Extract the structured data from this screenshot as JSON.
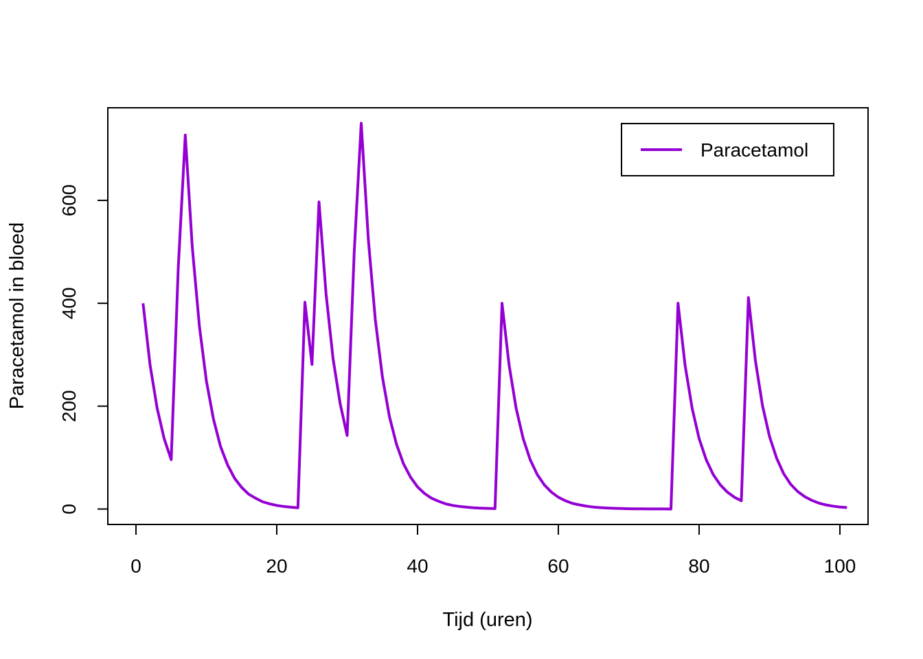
{
  "chart_data": {
    "type": "line",
    "title": "",
    "xlabel": "Tijd (uren)",
    "ylabel": "Paracetamol in bloed",
    "xlim": [
      -4,
      104
    ],
    "ylim": [
      -30,
      780
    ],
    "x_ticks": [
      0,
      20,
      40,
      60,
      80,
      100
    ],
    "x_tick_labels": [
      "0",
      "20",
      "40",
      "60",
      "80",
      "100"
    ],
    "y_ticks": [
      0,
      200,
      400,
      600
    ],
    "y_tick_labels": [
      "0",
      "200",
      "400",
      "600"
    ],
    "grid": false,
    "legend": {
      "position": "top-right",
      "entries": [
        "Paracetamol"
      ]
    },
    "series": [
      {
        "name": "Paracetamol",
        "color": "#9400D3",
        "x": [
          1,
          2,
          3,
          4,
          5,
          6,
          7,
          8,
          9,
          10,
          11,
          12,
          13,
          14,
          15,
          16,
          17,
          18,
          19,
          20,
          21,
          22,
          23,
          24,
          25,
          26,
          27,
          28,
          29,
          30,
          31,
          32,
          33,
          34,
          35,
          36,
          37,
          38,
          39,
          40,
          41,
          42,
          43,
          44,
          45,
          46,
          47,
          48,
          49,
          50,
          51,
          52,
          53,
          54,
          55,
          56,
          57,
          58,
          59,
          60,
          61,
          62,
          63,
          64,
          65,
          66,
          67,
          68,
          69,
          70,
          71,
          72,
          73,
          74,
          75,
          76,
          77,
          78,
          79,
          80,
          81,
          82,
          83,
          84,
          85,
          86,
          87,
          88,
          89,
          90,
          91,
          92,
          93,
          94,
          95,
          96,
          97,
          98,
          99,
          100,
          101
        ],
        "y": [
          400,
          280,
          196,
          137,
          96,
          467,
          727,
          509,
          356,
          249,
          175,
          122,
          86,
          60,
          42,
          29,
          21,
          14,
          10,
          7,
          5,
          3.5,
          2.4,
          402,
          281,
          597,
          418,
          292,
          205,
          143,
          500,
          750,
          525,
          368,
          257,
          180,
          126,
          88,
          62,
          43,
          30,
          21,
          15,
          10,
          7,
          5,
          3.5,
          2.4,
          1.7,
          1.2,
          0.8,
          400,
          280,
          196,
          137,
          96,
          67,
          47,
          33,
          23,
          16,
          11,
          8,
          5.5,
          3.8,
          2.7,
          1.9,
          1.3,
          0.9,
          0.6,
          0.4,
          0.3,
          0.2,
          0.15,
          0.1,
          0.07,
          400,
          280,
          196,
          137,
          96,
          67,
          47,
          33,
          23,
          16,
          411,
          288,
          201,
          141,
          99,
          69,
          48,
          34,
          24,
          17,
          11.5,
          8,
          5.6,
          3.9,
          2.8
        ]
      }
    ]
  }
}
